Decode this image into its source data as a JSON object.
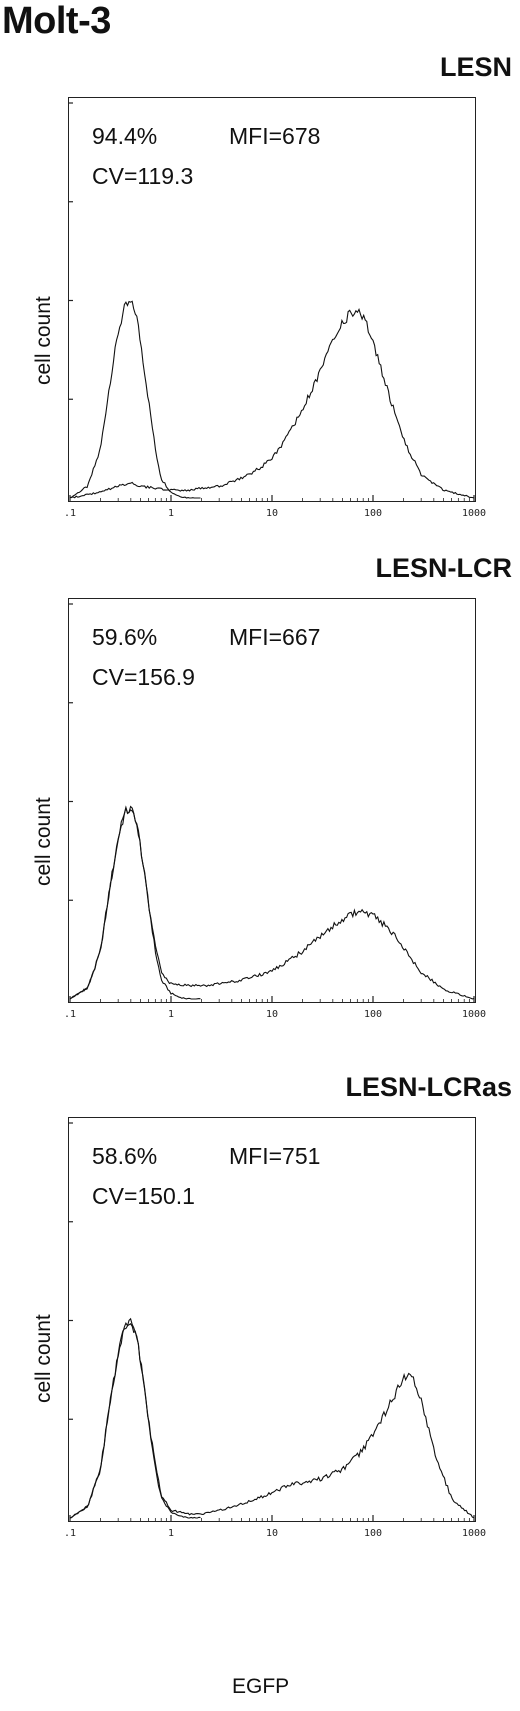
{
  "figure_title": "Molt-3",
  "x_axis_label": "EGFP",
  "y_axis_label": "cell count",
  "chart_data": [
    {
      "type": "line",
      "title": "LESN",
      "stats": {
        "percent": "94.4%",
        "mfi": "MFI=678",
        "cv": "CV=119.3"
      },
      "xscale": "log",
      "xlim": [
        0.1,
        1000
      ],
      "x_ticks": [
        ".1",
        "1",
        "10",
        "100",
        "1000"
      ],
      "ylabel": "cell count",
      "series": [
        {
          "x": [
            0.1,
            0.15,
            0.2,
            0.25,
            0.3,
            0.35,
            0.4,
            0.45,
            0.5,
            0.6,
            0.7,
            0.8,
            1,
            1.2,
            1.5,
            2
          ],
          "y": [
            0,
            0.06,
            0.25,
            0.6,
            0.85,
            0.98,
            1.0,
            0.95,
            0.8,
            0.5,
            0.25,
            0.1,
            0.03,
            0.01,
            0,
            0
          ]
        },
        {
          "x": [
            0.1,
            0.2,
            0.3,
            0.4,
            0.5,
            0.7,
            1,
            1.5,
            2,
            3,
            5,
            8,
            12,
            20,
            30,
            40,
            50,
            60,
            70,
            80,
            100,
            150,
            200,
            300,
            500,
            1000
          ],
          "y": [
            0,
            0.03,
            0.06,
            0.08,
            0.06,
            0.05,
            0.04,
            0.04,
            0.05,
            0.06,
            0.1,
            0.16,
            0.25,
            0.45,
            0.65,
            0.8,
            0.9,
            0.95,
            0.97,
            0.93,
            0.8,
            0.5,
            0.3,
            0.12,
            0.04,
            0
          ]
        }
      ]
    },
    {
      "type": "line",
      "title": "LESN-LCR",
      "stats": {
        "percent": "59.6%",
        "mfi": "MFI=667",
        "cv": "CV=156.9"
      },
      "xscale": "log",
      "xlim": [
        0.1,
        1000
      ],
      "x_ticks": [
        ".1",
        "1",
        "10",
        "100",
        "1000"
      ],
      "ylabel": "cell count",
      "series": [
        {
          "x": [
            0.1,
            0.15,
            0.2,
            0.25,
            0.3,
            0.35,
            0.4,
            0.45,
            0.5,
            0.6,
            0.7,
            0.8,
            1,
            1.2,
            1.5,
            2
          ],
          "y": [
            0,
            0.06,
            0.25,
            0.6,
            0.85,
            0.98,
            1.0,
            0.95,
            0.8,
            0.5,
            0.25,
            0.1,
            0.03,
            0.01,
            0,
            0
          ]
        },
        {
          "x": [
            0.1,
            0.15,
            0.2,
            0.25,
            0.3,
            0.35,
            0.4,
            0.45,
            0.5,
            0.6,
            0.7,
            0.8,
            1,
            1.5,
            2,
            3,
            5,
            8,
            12,
            20,
            30,
            50,
            70,
            100,
            150,
            200,
            300,
            500,
            1000
          ],
          "y": [
            0,
            0.06,
            0.25,
            0.6,
            0.85,
            0.98,
            1.0,
            0.95,
            0.8,
            0.5,
            0.28,
            0.14,
            0.08,
            0.07,
            0.07,
            0.08,
            0.1,
            0.13,
            0.17,
            0.25,
            0.33,
            0.42,
            0.46,
            0.44,
            0.36,
            0.27,
            0.14,
            0.05,
            0
          ]
        }
      ]
    },
    {
      "type": "line",
      "title": "LESN-LCRas",
      "stats": {
        "percent": "58.6%",
        "mfi": "MFI=751",
        "cv": "CV=150.1"
      },
      "xscale": "log",
      "xlim": [
        0.1,
        1000
      ],
      "x_ticks": [
        ".1",
        "1",
        "10",
        "100",
        "1000"
      ],
      "xlabel": "EGFP",
      "ylabel": "cell count",
      "series": [
        {
          "x": [
            0.1,
            0.15,
            0.2,
            0.25,
            0.3,
            0.35,
            0.4,
            0.45,
            0.5,
            0.6,
            0.7,
            0.8,
            1,
            1.2,
            1.5,
            2
          ],
          "y": [
            0,
            0.06,
            0.25,
            0.6,
            0.85,
            0.98,
            1.0,
            0.95,
            0.8,
            0.5,
            0.25,
            0.1,
            0.03,
            0.01,
            0,
            0
          ]
        },
        {
          "x": [
            0.1,
            0.15,
            0.2,
            0.25,
            0.3,
            0.35,
            0.4,
            0.45,
            0.5,
            0.6,
            0.7,
            0.8,
            1,
            1.5,
            2,
            3,
            5,
            10,
            15,
            20,
            30,
            50,
            80,
            120,
            160,
            200,
            250,
            300,
            400,
            600,
            1000
          ],
          "y": [
            0,
            0.06,
            0.25,
            0.6,
            0.85,
            0.98,
            1.0,
            0.95,
            0.8,
            0.5,
            0.28,
            0.12,
            0.04,
            0.02,
            0.02,
            0.04,
            0.07,
            0.13,
            0.17,
            0.18,
            0.2,
            0.25,
            0.35,
            0.5,
            0.62,
            0.72,
            0.72,
            0.6,
            0.35,
            0.1,
            0
          ]
        }
      ]
    }
  ]
}
